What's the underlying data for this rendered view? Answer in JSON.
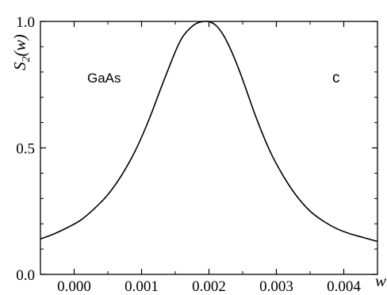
{
  "chart_data": {
    "type": "line",
    "title": "",
    "xlabel": "w",
    "ylabel": {
      "main": "S",
      "sub": "2",
      "arg": "(w)"
    },
    "xlim": [
      -0.0005,
      0.0045
    ],
    "ylim": [
      0.0,
      1.0
    ],
    "x_ticks": [
      0.0,
      0.001,
      0.002,
      0.003,
      0.004
    ],
    "x_tick_labels": [
      "0.000",
      "0.001",
      "0.002",
      "0.003",
      "0.004"
    ],
    "y_ticks": [
      0.0,
      0.5,
      1.0
    ],
    "y_tick_labels": [
      "0.0",
      "0.5",
      "1.0"
    ],
    "grid": false,
    "annotations": {
      "material": "GaAs",
      "panel": "c"
    },
    "series": [
      {
        "x": [
          -0.0005,
          -0.0003,
          -0.0001,
          0.0001,
          0.0003,
          0.0005,
          0.0007,
          0.0009,
          0.0011,
          0.0013,
          0.0015,
          0.0016,
          0.0017,
          0.0018,
          0.0019,
          0.002,
          0.0021,
          0.0022,
          0.0023,
          0.0024,
          0.0025,
          0.0027,
          0.0029,
          0.0031,
          0.0033,
          0.0035,
          0.0037,
          0.0039,
          0.0041,
          0.0043,
          0.0045
        ],
        "y": [
          0.14,
          0.16,
          0.185,
          0.215,
          0.26,
          0.315,
          0.39,
          0.485,
          0.605,
          0.745,
          0.88,
          0.935,
          0.968,
          0.99,
          0.999,
          0.999,
          0.985,
          0.952,
          0.902,
          0.84,
          0.77,
          0.62,
          0.49,
          0.39,
          0.31,
          0.25,
          0.21,
          0.18,
          0.16,
          0.145,
          0.13
        ]
      }
    ]
  }
}
